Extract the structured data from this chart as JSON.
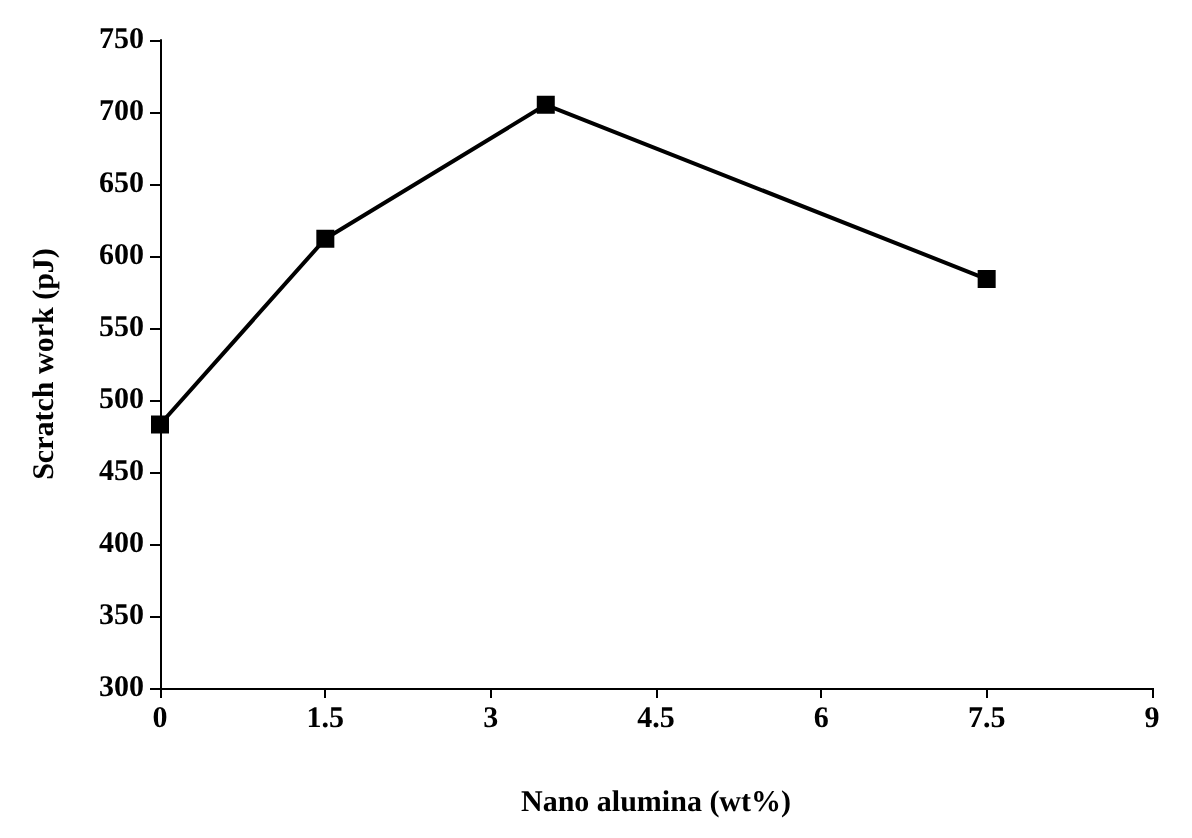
{
  "chart_data": {
    "type": "line",
    "xlabel": "Nano alumina (wt%)",
    "ylabel": "Scratch work (pJ)",
    "series": [
      {
        "color": "#000000",
        "x": [
          0,
          1.5,
          3.5,
          7.5
        ],
        "values": [
          483,
          612,
          705,
          584
        ]
      }
    ],
    "xlim": [
      0,
      9
    ],
    "xticks": [
      0,
      1.5,
      3,
      4.5,
      6,
      7.5,
      9
    ],
    "ylim": [
      300,
      750
    ],
    "yticks": [
      300,
      350,
      400,
      450,
      500,
      550,
      600,
      650,
      700,
      750
    ],
    "grid": false,
    "marker": "square",
    "line_style": "solid"
  }
}
